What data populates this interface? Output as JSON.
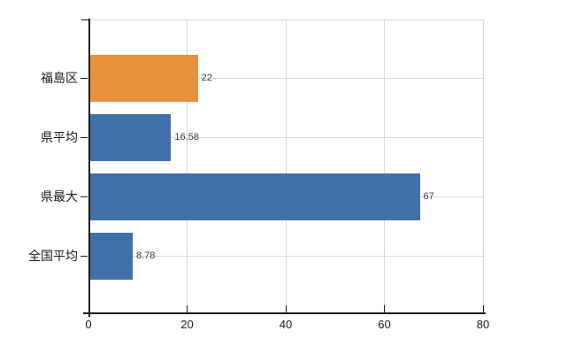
{
  "chart_data": {
    "type": "bar",
    "orientation": "horizontal",
    "title": "",
    "xlabel": "",
    "ylabel": "",
    "categories": [
      "福島区",
      "県平均",
      "県最大",
      "全国平均"
    ],
    "values": [
      22,
      16.58,
      67,
      8.78
    ],
    "value_labels": [
      "22",
      "16.58",
      "67",
      "8.78"
    ],
    "bar_colors": [
      "#e9903c",
      "#4170ab",
      "#4170ab",
      "#4170ab"
    ],
    "xlim": [
      0,
      80
    ],
    "x_ticks": [
      0,
      20,
      40,
      60,
      80
    ],
    "x_tick_labels": [
      "0",
      "20",
      "40",
      "60",
      "80"
    ],
    "grid": true,
    "legend": false
  },
  "colors": {
    "highlight_bar": "#e9903c",
    "default_bar": "#4170ab",
    "gridline": "#d9d9d9",
    "axis": "#1a1a1a",
    "value_label": "#3c3c3c",
    "tick_label": "#1a1a1a",
    "background": "#ffffff"
  }
}
